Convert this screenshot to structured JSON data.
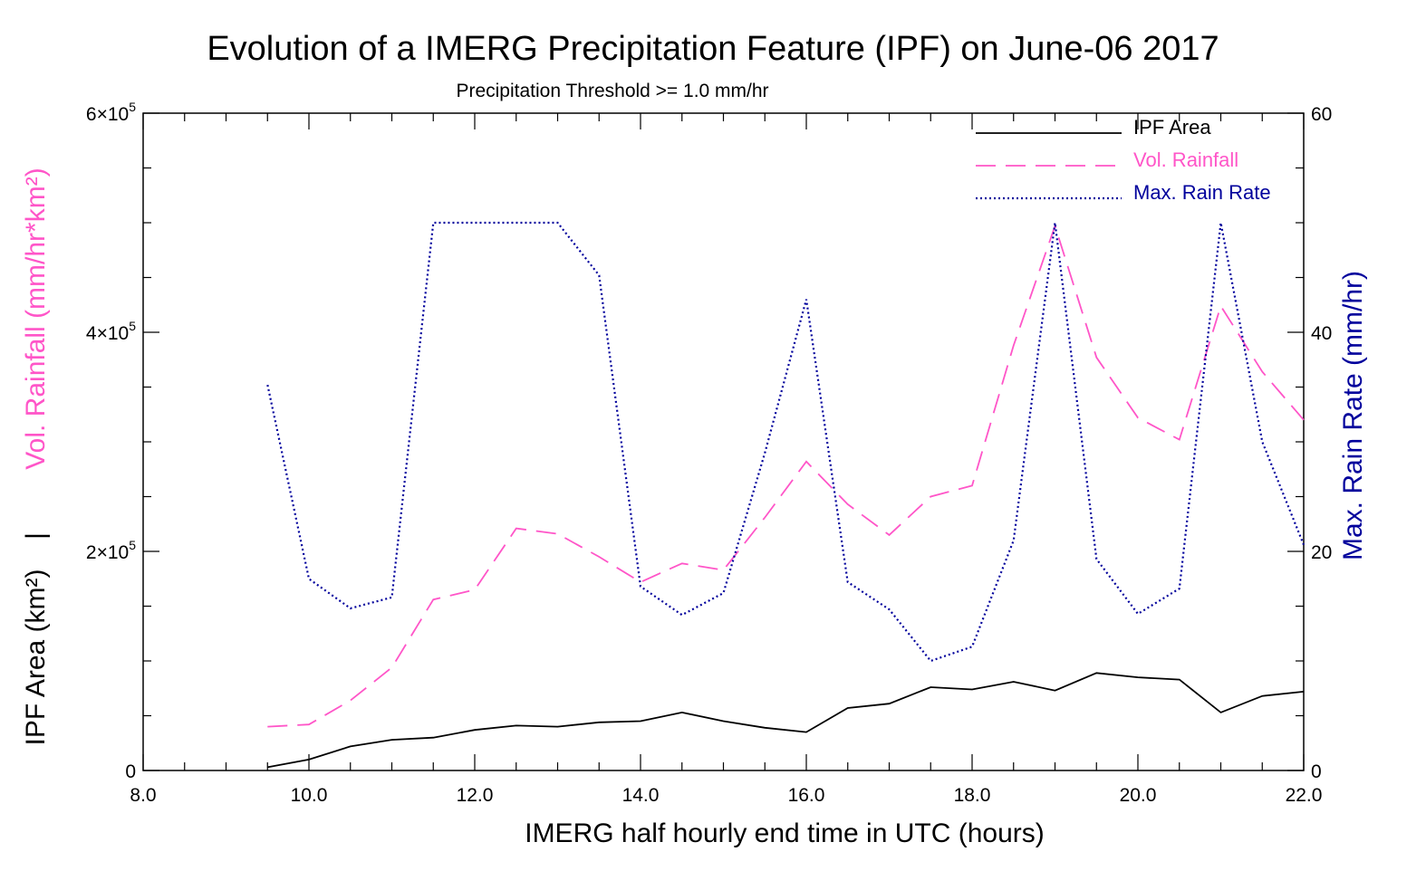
{
  "chart_data": {
    "type": "line",
    "title": "Evolution of a IMERG Precipitation Feature (IPF) on June-06 2017",
    "subtitle": "Precipitation Threshold >= 1.0 mm/hr",
    "xlabel": "IMERG half hourly end time in UTC (hours)",
    "ylabel_left_top": "Vol. Rainfall (mm/hr*km²)",
    "ylabel_left_separator": "|",
    "ylabel_left_bottom": "IPF Area (km²)",
    "ylabel_right": "Max. Rain Rate (mm/hr)",
    "xlim": [
      8,
      22
    ],
    "ylim_left": [
      0,
      600000
    ],
    "ylim_right": [
      0,
      60
    ],
    "x_ticks": [
      {
        "value": 8,
        "label": "8.0"
      },
      {
        "value": 10,
        "label": "10.0"
      },
      {
        "value": 12,
        "label": "12.0"
      },
      {
        "value": 14,
        "label": "14.0"
      },
      {
        "value": 16,
        "label": "16.0"
      },
      {
        "value": 18,
        "label": "18.0"
      },
      {
        "value": 20,
        "label": "20.0"
      },
      {
        "value": 22,
        "label": "22.0"
      }
    ],
    "y_left_ticks": [
      {
        "value": 0,
        "label": "0",
        "exp": ""
      },
      {
        "value": 200000,
        "label": "2×10",
        "exp": "5"
      },
      {
        "value": 400000,
        "label": "4×10",
        "exp": "5"
      },
      {
        "value": 600000,
        "label": "6×10",
        "exp": "5"
      }
    ],
    "y_right_ticks": [
      {
        "value": 0,
        "label": "0"
      },
      {
        "value": 20,
        "label": "20"
      },
      {
        "value": 40,
        "label": "40"
      },
      {
        "value": 60,
        "label": "60"
      }
    ],
    "legend_position": "top-right",
    "x": [
      9.5,
      10.0,
      10.5,
      11.0,
      11.5,
      12.0,
      12.5,
      13.0,
      13.5,
      14.0,
      14.5,
      15.0,
      15.5,
      16.0,
      16.5,
      17.0,
      17.5,
      18.0,
      18.5,
      19.0,
      19.5,
      20.0,
      20.5,
      21.0,
      21.5,
      22.0
    ],
    "series": [
      {
        "name": "IPF Area",
        "axis": "left",
        "color": "#000000",
        "style": "solid",
        "values": [
          3000,
          10000,
          22000,
          28000,
          30000,
          37000,
          41000,
          40000,
          44000,
          45000,
          53000,
          45000,
          39000,
          35000,
          57000,
          61000,
          76000,
          74000,
          81000,
          73000,
          89000,
          85000,
          83000,
          53000,
          68000,
          72000
        ]
      },
      {
        "name": "Vol. Rainfall",
        "axis": "left",
        "color": "#ff55c8",
        "style": "dashed",
        "values": [
          40000,
          42000,
          64000,
          94000,
          156000,
          165000,
          221000,
          216000,
          195000,
          172000,
          189000,
          183000,
          231000,
          282000,
          243000,
          215000,
          250000,
          260000,
          388000,
          497000,
          377000,
          322000,
          302000,
          424000,
          364000,
          320000
        ]
      },
      {
        "name": "Max. Rain Rate",
        "axis": "right",
        "color": "#00009c",
        "style": "dotted",
        "values": [
          35.2,
          17.5,
          14.8,
          15.8,
          50,
          50,
          50,
          50,
          45.2,
          16.8,
          14.2,
          16.2,
          29,
          43,
          17.2,
          14.7,
          10,
          11.3,
          21,
          50,
          19.3,
          14.3,
          16.6,
          50,
          30,
          20.6
        ]
      }
    ]
  }
}
